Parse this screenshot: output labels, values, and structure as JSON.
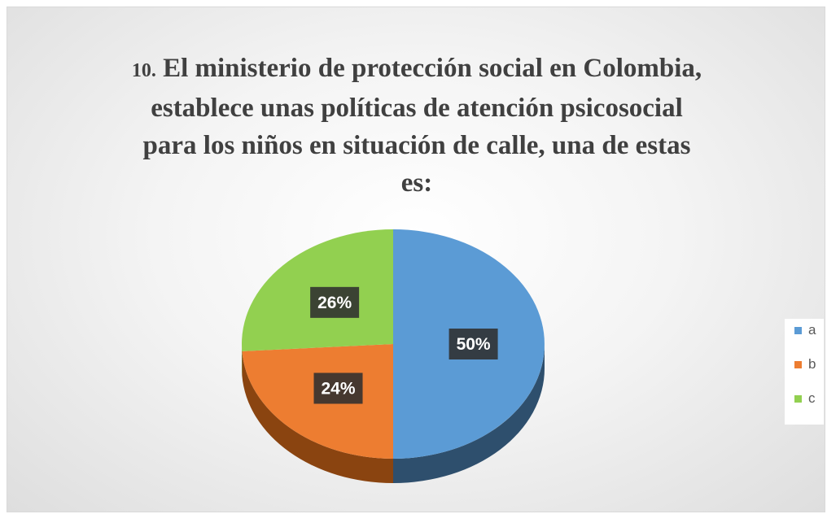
{
  "chart_data": {
    "type": "pie",
    "title_number": "10.",
    "title": "El ministerio de protección social en Colombia, establece unas políticas de atención psicosocial para los niños en situación de calle, una de estas es:",
    "title_lines": [
      "El ministerio de protección social en Colombia,",
      "establece unas políticas de atención psicosocial",
      "para los niños en situación de calle, una de estas",
      "es:"
    ],
    "categories": [
      "a",
      "b",
      "c"
    ],
    "values": [
      50,
      24,
      26
    ],
    "data_labels": [
      "50%",
      "24%",
      "26%"
    ],
    "colors": [
      "#5b9bd5",
      "#ed7d31",
      "#92d050"
    ],
    "side_colors": [
      "#2e4f6d",
      "#8a4410",
      "#5a8a2c"
    ],
    "legend": {
      "position": "right",
      "entries": [
        "a",
        "b",
        "c"
      ]
    },
    "style": "3d"
  }
}
